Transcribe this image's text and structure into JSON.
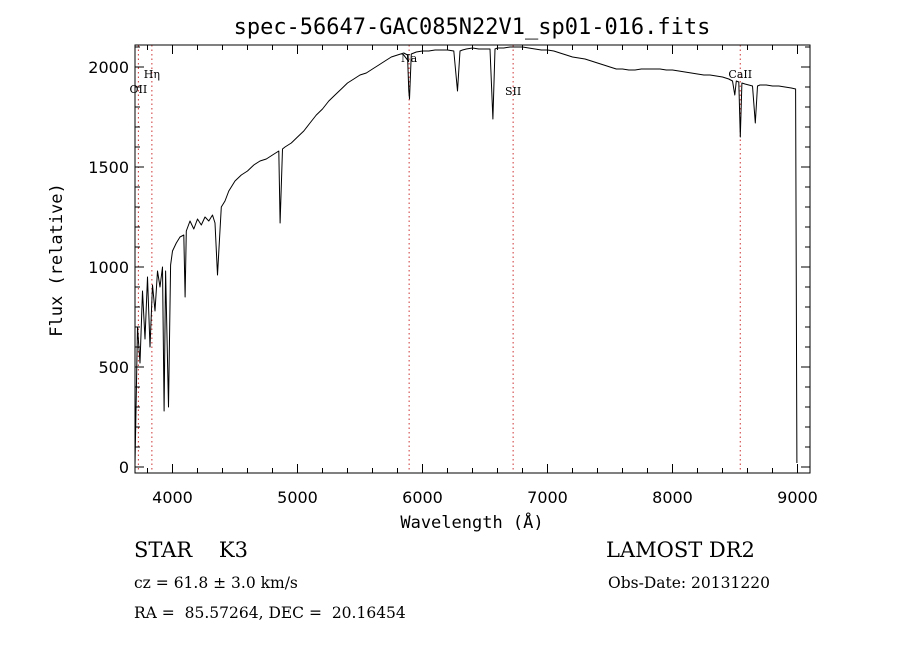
{
  "chart_data": {
    "type": "line",
    "title": "spec-56647-GAC085N22V1_sp01-016.fits",
    "xlabel": "Wavelength (Å)",
    "ylabel": "Flux (relative)",
    "xlim": [
      3700,
      9100
    ],
    "ylim": [
      -30,
      2110
    ],
    "xticks": [
      4000,
      5000,
      6000,
      7000,
      8000,
      9000
    ],
    "yticks": [
      0,
      500,
      1000,
      1500,
      2000
    ],
    "grid": false,
    "line_color": "#000000",
    "marker_color": "#cc3333",
    "series": [
      {
        "x": [
          3700,
          3720,
          3740,
          3760,
          3780,
          3800,
          3820,
          3840,
          3860,
          3880,
          3900,
          3920,
          3933,
          3945,
          3968,
          3985,
          4000,
          4030,
          4060,
          4090,
          4101,
          4110,
          4140,
          4170,
          4200,
          4230,
          4260,
          4290,
          4320,
          4340,
          4360,
          4390,
          4420,
          4450,
          4500,
          4550,
          4600,
          4650,
          4700,
          4750,
          4800,
          4850,
          4861,
          4880,
          4900,
          4950,
          5000,
          5050,
          5100,
          5150,
          5200,
          5250,
          5300,
          5350,
          5400,
          5450,
          5500,
          5550,
          5600,
          5650,
          5700,
          5750,
          5800,
          5850,
          5880,
          5890,
          5896,
          5910,
          5950,
          6000,
          6050,
          6100,
          6150,
          6200,
          6250,
          6280,
          6300,
          6320,
          6350,
          6400,
          6450,
          6500,
          6540,
          6563,
          6580,
          6600,
          6650,
          6700,
          6750,
          6800,
          6850,
          6900,
          6950,
          7000,
          7050,
          7100,
          7150,
          7200,
          7250,
          7300,
          7350,
          7400,
          7450,
          7500,
          7550,
          7600,
          7650,
          7700,
          7750,
          7800,
          7850,
          7900,
          7950,
          8000,
          8050,
          8100,
          8150,
          8200,
          8250,
          8300,
          8350,
          8400,
          8450,
          8480,
          8498,
          8510,
          8530,
          8542,
          8555,
          8580,
          8610,
          8640,
          8662,
          8680,
          8700,
          8750,
          8800,
          8850,
          8900,
          8950,
          8985,
          8995
        ],
        "y": [
          10,
          700,
          520,
          880,
          640,
          950,
          600,
          910,
          780,
          980,
          900,
          1000,
          280,
          980,
          300,
          1010,
          1080,
          1120,
          1150,
          1160,
          850,
          1180,
          1230,
          1190,
          1240,
          1210,
          1250,
          1230,
          1260,
          1220,
          960,
          1300,
          1330,
          1380,
          1430,
          1460,
          1480,
          1510,
          1530,
          1540,
          1560,
          1580,
          1220,
          1590,
          1600,
          1620,
          1650,
          1680,
          1720,
          1760,
          1790,
          1830,
          1860,
          1890,
          1920,
          1940,
          1960,
          1970,
          1990,
          2010,
          2030,
          2050,
          2060,
          2070,
          2060,
          1880,
          1840,
          2065,
          2075,
          2080,
          2080,
          2085,
          2085,
          2085,
          2080,
          1880,
          2080,
          2085,
          2090,
          2095,
          2090,
          2090,
          2090,
          1740,
          2090,
          2095,
          2095,
          2100,
          2100,
          2100,
          2095,
          2090,
          2085,
          2085,
          2080,
          2070,
          2060,
          2050,
          2045,
          2040,
          2030,
          2020,
          2010,
          2000,
          1990,
          1990,
          1985,
          1985,
          1990,
          1990,
          1990,
          1990,
          1985,
          1985,
          1980,
          1975,
          1970,
          1965,
          1960,
          1960,
          1955,
          1950,
          1940,
          1930,
          1860,
          1930,
          1925,
          1650,
          1920,
          1915,
          1910,
          1905,
          1720,
          1905,
          1910,
          1910,
          1905,
          1905,
          1900,
          1895,
          1890,
          20
        ]
      }
    ],
    "lines": [
      {
        "x": 3727,
        "label": "OII"
      },
      {
        "x": 3835,
        "label": "Hη"
      },
      {
        "x": 5893,
        "label": "Na"
      },
      {
        "x": 6725,
        "label": "SII"
      },
      {
        "x": 8542,
        "label": "CaII"
      }
    ]
  },
  "info": {
    "class_text": "STAR    K3",
    "survey": "LAMOST DR2",
    "cz": "cz = 61.8 ± 3.0 km/s",
    "obs_date": "Obs-Date: 20131220",
    "radec": "RA =  85.57264, DEC =  20.16454"
  }
}
